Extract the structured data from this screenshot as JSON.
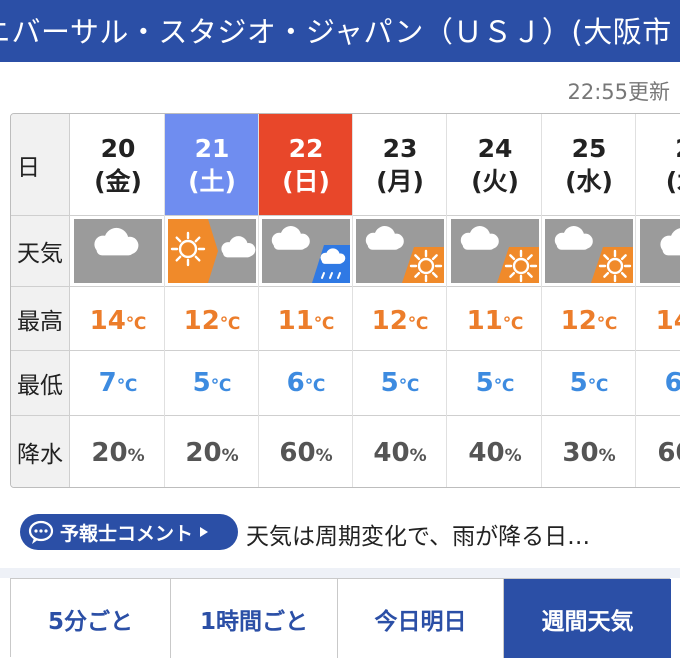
{
  "header": {
    "title": "ニバーサル・スタジオ・ジャパン（ＵＳＪ）(大阪市"
  },
  "update_time": "22:55更新",
  "row_labels": {
    "date": "日",
    "weather": "天気",
    "high": "最高",
    "low": "最低",
    "rain": "降水"
  },
  "unit_temp": "℃",
  "unit_rain": "%",
  "days": [
    {
      "day": "20",
      "weekday": "(金)",
      "high": "14",
      "low": "7",
      "rain": "20",
      "icon": "cloudy",
      "type": "weekday"
    },
    {
      "day": "21",
      "weekday": "(土)",
      "high": "12",
      "low": "5",
      "rain": "20",
      "icon": "sunny-then-cloudy",
      "type": "saturday"
    },
    {
      "day": "22",
      "weekday": "(日)",
      "high": "11",
      "low": "6",
      "rain": "60",
      "icon": "cloudy-then-rain",
      "type": "sunday"
    },
    {
      "day": "23",
      "weekday": "(月)",
      "high": "12",
      "low": "5",
      "rain": "40",
      "icon": "cloudy-sometimes-sunny",
      "type": "weekday"
    },
    {
      "day": "24",
      "weekday": "(火)",
      "high": "11",
      "low": "5",
      "rain": "40",
      "icon": "cloudy-sometimes-sunny",
      "type": "weekday"
    },
    {
      "day": "25",
      "weekday": "(水)",
      "high": "12",
      "low": "5",
      "rain": "30",
      "icon": "cloudy-sometimes-sunny",
      "type": "weekday"
    },
    {
      "day": "2",
      "weekday": "(木",
      "high": "14",
      "low": "6",
      "rain": "60",
      "icon": "cloudy",
      "type": "weekday"
    }
  ],
  "comment": {
    "label": "予報士コメント",
    "text": "天気は周期変化で、雨が降る日…"
  },
  "tabs": [
    {
      "label": "5分ごと",
      "active": false
    },
    {
      "label": "1時間ごと",
      "active": false
    },
    {
      "label": "今日明日",
      "active": false
    },
    {
      "label": "週間天気",
      "active": true
    }
  ],
  "colors": {
    "header": "#2b4fa6",
    "saturday": "#6f8df0",
    "sunday": "#e8472a",
    "high_temp": "#ec7d2b",
    "low_temp": "#3d8be0",
    "icon_bg": "#9b9b9b",
    "sun_bg": "#f08a2a",
    "rain_bg": "#2f79e4"
  }
}
